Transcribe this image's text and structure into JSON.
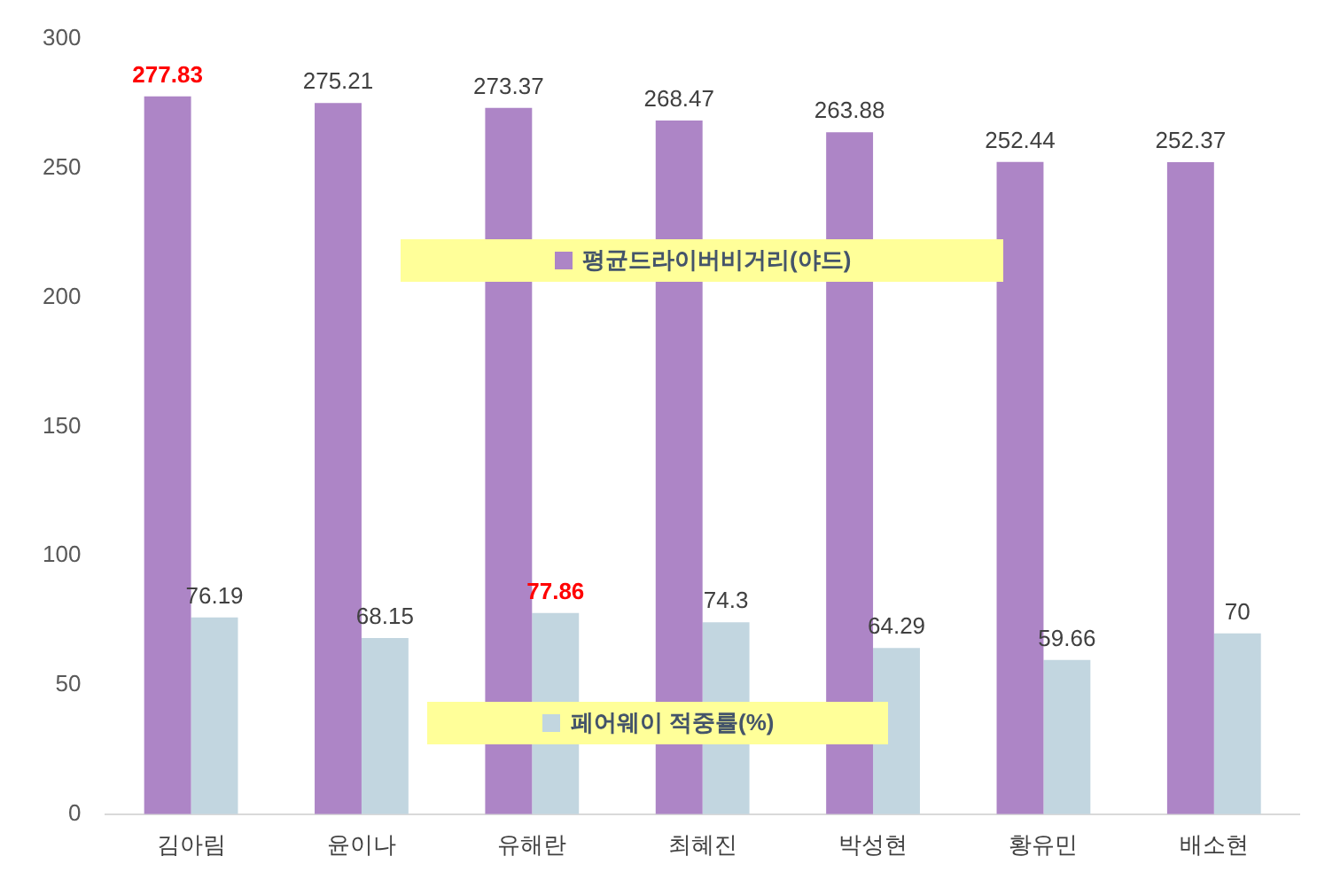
{
  "chart_data": {
    "type": "bar",
    "categories": [
      "김아림",
      "윤이나",
      "유해란",
      "최혜진",
      "박성현",
      "황유민",
      "배소현"
    ],
    "series": [
      {
        "name": "평균드라이버비거리(야드)",
        "color": "#ad85c6",
        "values": [
          277.83,
          275.21,
          273.37,
          268.47,
          263.88,
          252.44,
          252.37
        ]
      },
      {
        "name": "페어웨이 적중률(%)",
        "color": "#c2d6e0",
        "values": [
          76.19,
          68.15,
          77.86,
          74.3,
          64.29,
          59.66,
          70
        ]
      }
    ],
    "ylim": [
      0,
      300
    ],
    "yticks": [
      0,
      50,
      100,
      150,
      200,
      250,
      300
    ],
    "grid": false,
    "legend": "center",
    "data_labels": true
  }
}
